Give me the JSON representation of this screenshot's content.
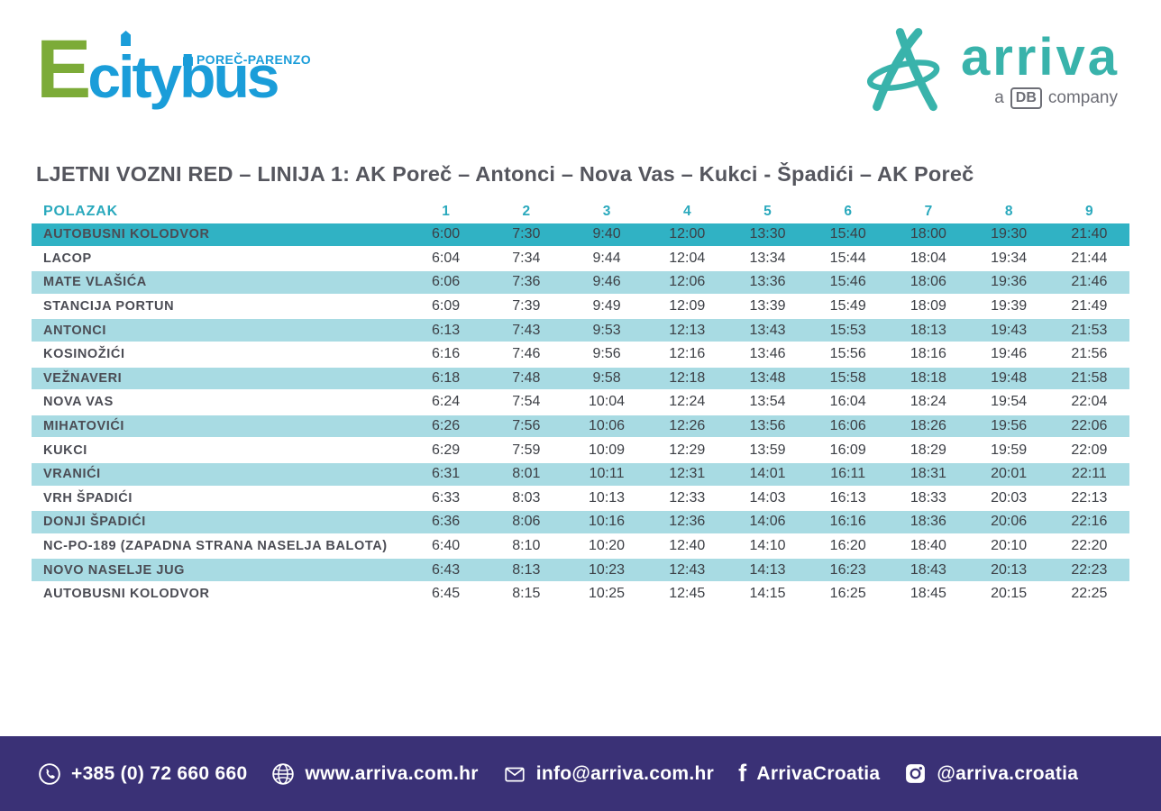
{
  "logo": {
    "citybus": {
      "initial": "E",
      "word_c": "c",
      "word_i": "i",
      "word_rest": "tybus",
      "region": "POREČ-PARENZO"
    },
    "arriva": {
      "word": "arriva",
      "tag_prefix": "a",
      "tag_db": "DB",
      "tag_suffix": "company"
    }
  },
  "title": "LJETNI VOZNI RED – LINIJA 1: AK Poreč – Antonci – Nova Vas – Kukci - Špadići – AK Poreč",
  "table": {
    "header_label": "POLAZAK",
    "columns": [
      "1",
      "2",
      "3",
      "4",
      "5",
      "6",
      "7",
      "8",
      "9"
    ],
    "rows": [
      {
        "stop": "AUTOBUSNI KOLODVOR",
        "times": [
          "6:00",
          "7:30",
          "9:40",
          "12:00",
          "13:30",
          "15:40",
          "18:00",
          "19:30",
          "21:40"
        ]
      },
      {
        "stop": "LACOP",
        "times": [
          "6:04",
          "7:34",
          "9:44",
          "12:04",
          "13:34",
          "15:44",
          "18:04",
          "19:34",
          "21:44"
        ]
      },
      {
        "stop": "MATE VLAŠIĆA",
        "times": [
          "6:06",
          "7:36",
          "9:46",
          "12:06",
          "13:36",
          "15:46",
          "18:06",
          "19:36",
          "21:46"
        ]
      },
      {
        "stop": "STANCIJA PORTUN",
        "times": [
          "6:09",
          "7:39",
          "9:49",
          "12:09",
          "13:39",
          "15:49",
          "18:09",
          "19:39",
          "21:49"
        ]
      },
      {
        "stop": "ANTONCI",
        "times": [
          "6:13",
          "7:43",
          "9:53",
          "12:13",
          "13:43",
          "15:53",
          "18:13",
          "19:43",
          "21:53"
        ]
      },
      {
        "stop": "KOSINOŽIĆI",
        "times": [
          "6:16",
          "7:46",
          "9:56",
          "12:16",
          "13:46",
          "15:56",
          "18:16",
          "19:46",
          "21:56"
        ]
      },
      {
        "stop": "VEŽNAVERI",
        "times": [
          "6:18",
          "7:48",
          "9:58",
          "12:18",
          "13:48",
          "15:58",
          "18:18",
          "19:48",
          "21:58"
        ]
      },
      {
        "stop": "NOVA VAS",
        "times": [
          "6:24",
          "7:54",
          "10:04",
          "12:24",
          "13:54",
          "16:04",
          "18:24",
          "19:54",
          "22:04"
        ]
      },
      {
        "stop": "MIHATOVIĆI",
        "times": [
          "6:26",
          "7:56",
          "10:06",
          "12:26",
          "13:56",
          "16:06",
          "18:26",
          "19:56",
          "22:06"
        ]
      },
      {
        "stop": "KUKCI",
        "times": [
          "6:29",
          "7:59",
          "10:09",
          "12:29",
          "13:59",
          "16:09",
          "18:29",
          "19:59",
          "22:09"
        ]
      },
      {
        "stop": "VRANIĆI",
        "times": [
          "6:31",
          "8:01",
          "10:11",
          "12:31",
          "14:01",
          "16:11",
          "18:31",
          "20:01",
          "22:11"
        ]
      },
      {
        "stop": "VRH ŠPADIĆI",
        "times": [
          "6:33",
          "8:03",
          "10:13",
          "12:33",
          "14:03",
          "16:13",
          "18:33",
          "20:03",
          "22:13"
        ]
      },
      {
        "stop": "DONJI ŠPADIĆI",
        "times": [
          "6:36",
          "8:06",
          "10:16",
          "12:36",
          "14:06",
          "16:16",
          "18:36",
          "20:06",
          "22:16"
        ]
      },
      {
        "stop": "NC-PO-189 (ZAPADNA STRANA NASELJA BALOTA)",
        "times": [
          "6:40",
          "8:10",
          "10:20",
          "12:40",
          "14:10",
          "16:20",
          "18:40",
          "20:10",
          "22:20"
        ]
      },
      {
        "stop": "NOVO NASELJE JUG",
        "times": [
          "6:43",
          "8:13",
          "10:23",
          "12:43",
          "14:13",
          "16:23",
          "18:43",
          "20:13",
          "22:23"
        ]
      },
      {
        "stop": "AUTOBUSNI KOLODVOR",
        "times": [
          "6:45",
          "8:15",
          "10:25",
          "12:45",
          "14:15",
          "16:25",
          "18:45",
          "20:15",
          "22:25"
        ]
      }
    ]
  },
  "footer": {
    "phone": "+385 (0) 72 660 660",
    "website": "www.arriva.com.hr",
    "email": "info@arriva.com.hr",
    "facebook": "ArrivaCroatia",
    "instagram": "@arriva.croatia"
  },
  "colors": {
    "highlight_row": "#30b2c4",
    "light_row": "#a8dbe3",
    "teal_text": "#2aa9bd",
    "footer_bg": "#3a3176",
    "arriva_teal": "#39b3ab",
    "citybus_blue": "#1a9dd9",
    "citybus_green": "#7cab38",
    "title_gray": "#55565e"
  }
}
